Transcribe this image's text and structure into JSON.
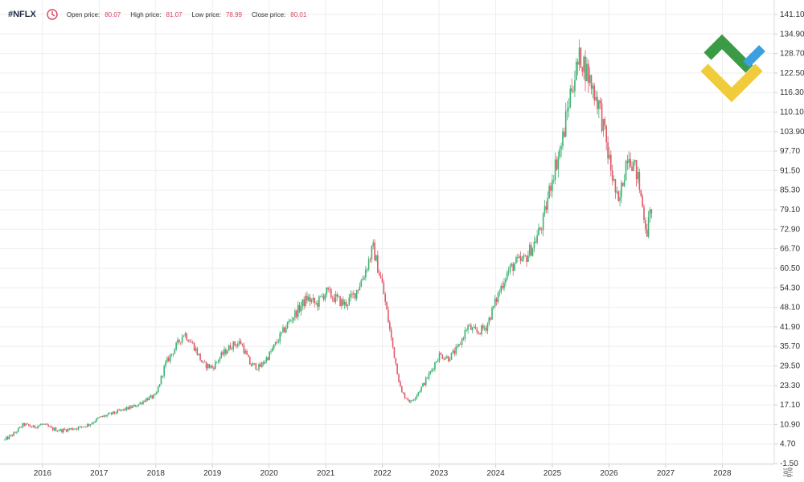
{
  "header": {
    "symbol": "#NFLX",
    "open_label": "Open price:",
    "open_value": "80.07",
    "high_label": "High price:",
    "high_value": "81.07",
    "low_label": "Low price:",
    "low_value": "78.99",
    "close_label": "Close price:",
    "close_value": "80.01"
  },
  "colors": {
    "up": "#3cb371",
    "down": "#e05a68",
    "grid": "#eeeeee",
    "axis_text": "#333333",
    "accent": "#d9455f",
    "logo_green": "#3b9a46",
    "logo_yellow": "#f0cc3c",
    "logo_blue": "#3aa0e0"
  },
  "icons": {
    "clock": "clock-icon",
    "settings": "settings-icon",
    "logo": "brand-logo-icon"
  },
  "chart_data": {
    "type": "candlestick",
    "x_tick_labels": [
      "2016",
      "2017",
      "2018",
      "2019",
      "2020",
      "2021",
      "2022",
      "2023",
      "2024",
      "2025",
      "2026",
      "2027",
      "2028"
    ],
    "y_tick_labels": [
      "141.10",
      "134.90",
      "128.70",
      "122.50",
      "116.30",
      "110.10",
      "103.90",
      "97.70",
      "91.50",
      "85.30",
      "79.10",
      "72.90",
      "66.70",
      "60.50",
      "54.30",
      "48.10",
      "41.90",
      "35.70",
      "29.50",
      "23.30",
      "17.10",
      "10.90",
      "4.70",
      "-1.50"
    ],
    "ylim": [
      -1.5,
      141.1
    ],
    "xlim": [
      "2015-04",
      "2028-12"
    ],
    "grid": true,
    "series": [
      {
        "points": [
          [
            "2015-05",
            6
          ],
          [
            "2015-07",
            8
          ],
          [
            "2015-09",
            11
          ],
          [
            "2015-11",
            10
          ],
          [
            "2016-01",
            11
          ],
          [
            "2016-03",
            9.5
          ],
          [
            "2016-05",
            9
          ],
          [
            "2016-07",
            9.5
          ],
          [
            "2016-09",
            10
          ],
          [
            "2016-11",
            11
          ],
          [
            "2017-01",
            13
          ],
          [
            "2017-03",
            14
          ],
          [
            "2017-05",
            15
          ],
          [
            "2017-07",
            16
          ],
          [
            "2017-09",
            17
          ],
          [
            "2017-11",
            19
          ],
          [
            "2018-01",
            20
          ],
          [
            "2018-03",
            30
          ],
          [
            "2018-05",
            35
          ],
          [
            "2018-07",
            40
          ],
          [
            "2018-09",
            36
          ],
          [
            "2018-11",
            30
          ],
          [
            "2019-01",
            29
          ],
          [
            "2019-03",
            33
          ],
          [
            "2019-05",
            36
          ],
          [
            "2019-07",
            37
          ],
          [
            "2019-09",
            30
          ],
          [
            "2019-11",
            29
          ],
          [
            "2020-01",
            33
          ],
          [
            "2020-03",
            38
          ],
          [
            "2020-05",
            43
          ],
          [
            "2020-07",
            47
          ],
          [
            "2020-09",
            51
          ],
          [
            "2020-11",
            49
          ],
          [
            "2021-01",
            53
          ],
          [
            "2021-03",
            51
          ],
          [
            "2021-05",
            49
          ],
          [
            "2021-07",
            52
          ],
          [
            "2021-09",
            58
          ],
          [
            "2021-11",
            67
          ],
          [
            "2022-01",
            55
          ],
          [
            "2022-03",
            37
          ],
          [
            "2022-05",
            21
          ],
          [
            "2022-07",
            18
          ],
          [
            "2022-09",
            22
          ],
          [
            "2022-11",
            27
          ],
          [
            "2023-01",
            33
          ],
          [
            "2023-03",
            32
          ],
          [
            "2023-05",
            35
          ],
          [
            "2023-07",
            42
          ],
          [
            "2023-09",
            40
          ],
          [
            "2023-11",
            42
          ],
          [
            "2024-01",
            50
          ],
          [
            "2024-03",
            58
          ],
          [
            "2024-05",
            62
          ],
          [
            "2024-07",
            63
          ],
          [
            "2024-09",
            68
          ],
          [
            "2024-11",
            75
          ],
          [
            "2025-01",
            90
          ],
          [
            "2025-03",
            100
          ],
          [
            "2025-05",
            118
          ],
          [
            "2025-07",
            128
          ],
          [
            "2025-09",
            120
          ],
          [
            "2025-11",
            112
          ],
          [
            "2026-01",
            95
          ],
          [
            "2026-03",
            80
          ],
          [
            "2026-05",
            98
          ],
          [
            "2026-07",
            90
          ],
          [
            "2026-09",
            72
          ],
          [
            "2026-10",
            80
          ]
        ]
      }
    ]
  }
}
